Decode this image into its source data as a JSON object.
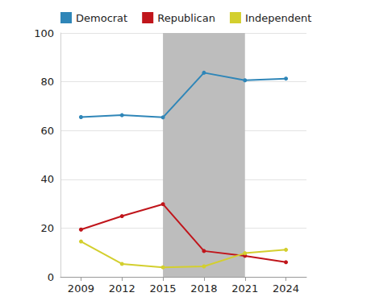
{
  "chart_data": {
    "type": "line",
    "categories": [
      "2009",
      "2012",
      "2015",
      "2018",
      "2021",
      "2024"
    ],
    "series": [
      {
        "name": "Democrat",
        "color": "#2f86b8",
        "values": [
          65.5,
          66.3,
          65.4,
          83.7,
          80.6,
          81.3
        ]
      },
      {
        "name": "Republican",
        "color": "#c0151b",
        "values": [
          19.4,
          24.9,
          29.8,
          10.6,
          8.6,
          6.0
        ]
      },
      {
        "name": "Independent",
        "color": "#d3cf2e",
        "values": [
          14.5,
          5.3,
          3.9,
          4.3,
          9.7,
          11.1
        ]
      }
    ],
    "shaded_range": [
      "2015",
      "2021"
    ],
    "ylim": [
      0,
      100
    ],
    "yticks": [
      0,
      20,
      40,
      60,
      80,
      100
    ],
    "grid": true,
    "legend": "top-left",
    "marker": "circle"
  }
}
